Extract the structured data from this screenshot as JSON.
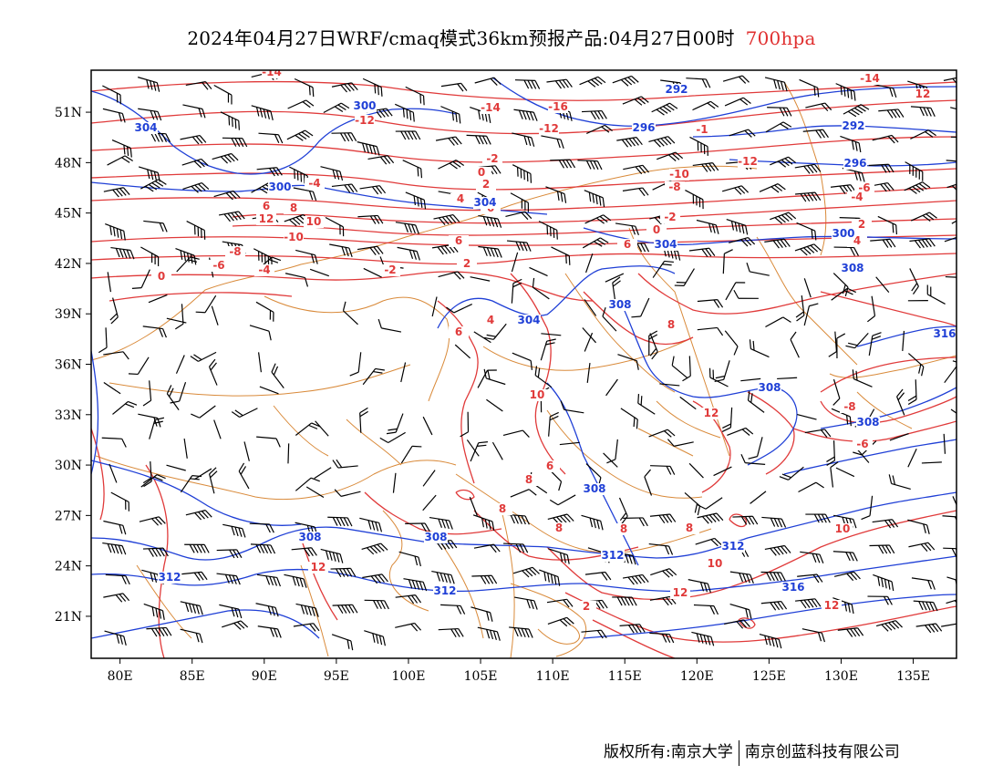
{
  "title": {
    "main": "2024年04月27日WRF/cmaq模式36km预报产品:04月27日00时",
    "level": "700hpa"
  },
  "colors": {
    "temperature": "#e03a3a",
    "geopotential": "#1f3fd6",
    "border": "#d98a3a",
    "wind": "#000000",
    "frame": "#000000"
  },
  "map": {
    "lat_labels": [
      "51N",
      "48N",
      "45N",
      "42N",
      "39N",
      "36N",
      "33N",
      "30N",
      "27N",
      "24N",
      "21N"
    ],
    "lon_labels": [
      "80E",
      "85E",
      "90E",
      "95E",
      "100E",
      "105E",
      "110E",
      "115E",
      "120E",
      "125E",
      "130E",
      "135E"
    ],
    "temperature_labels": [
      "-14",
      "-12",
      "-14",
      "-16",
      "-12",
      "-1",
      "-12",
      "-14",
      "12",
      "-10",
      "-8",
      "-6",
      "-4",
      "-2",
      "0",
      "2",
      "4",
      "6",
      "8",
      "10",
      "12",
      "-10",
      "-8",
      "-6",
      "-4",
      "-2",
      "0",
      "2",
      "4",
      "6",
      "8",
      "10",
      "12",
      "-8",
      "-6",
      "-4",
      "-2",
      "0",
      "2",
      "4",
      "6",
      "6",
      "6",
      "6",
      "8",
      "8",
      "8",
      "8",
      "8",
      "10",
      "10",
      "12",
      "12",
      "12",
      "2"
    ],
    "height_labels": [
      "304",
      "300",
      "292",
      "296",
      "292",
      "296",
      "300",
      "304",
      "300",
      "304",
      "304",
      "308",
      "308",
      "308",
      "308",
      "308",
      "308",
      "312",
      "312",
      "312",
      "312",
      "316",
      "316",
      "308"
    ]
  },
  "footer": {
    "left": "版权所有:南京大学",
    "right": "南京创蓝科技有限公司"
  }
}
